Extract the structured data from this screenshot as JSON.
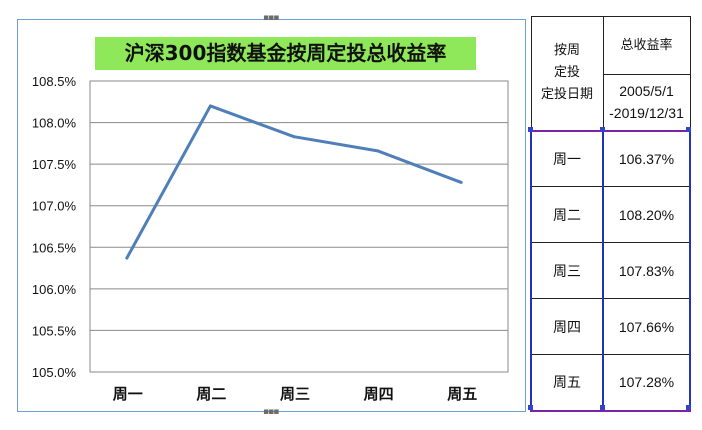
{
  "chart_data": {
    "type": "line",
    "title": "沪深300指数基金按周定投总收益率",
    "categories": [
      "周一",
      "周二",
      "周三",
      "周四",
      "周五"
    ],
    "series": [
      {
        "values": [
          106.37,
          108.2,
          107.83,
          107.66,
          107.28
        ],
        "color": "#4f7fb8"
      }
    ],
    "ylim": [
      105.0,
      108.5
    ],
    "yticks": [
      "105.0%",
      "105.5%",
      "106.0%",
      "106.5%",
      "107.0%",
      "107.5%",
      "108.0%",
      "108.5%"
    ],
    "grid": true,
    "legend": "none"
  },
  "table": {
    "header_left": "按周\n定投\n定投日期",
    "header_right_top": "总收益率",
    "header_right_bottom": "2005/5/1\n-2019/12/31",
    "rows": [
      {
        "day": "周一",
        "value": "106.37%"
      },
      {
        "day": "周二",
        "value": "108.20%"
      },
      {
        "day": "周三",
        "value": "107.83%"
      },
      {
        "day": "周四",
        "value": "107.66%"
      },
      {
        "day": "周五",
        "value": "107.28%"
      }
    ]
  },
  "colors": {
    "title_bg": "#8ee85a",
    "frame": "#6aa1d8",
    "grid": "#8a8a8a",
    "selection": "#2233bb"
  }
}
